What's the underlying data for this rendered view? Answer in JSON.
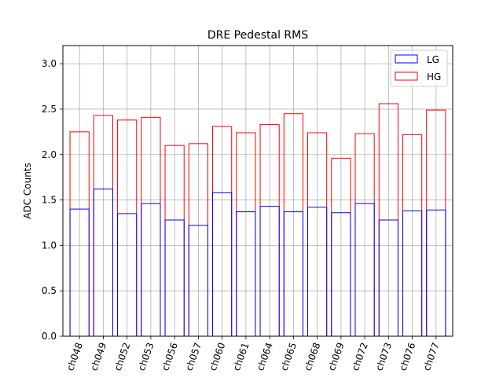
{
  "chart_data": {
    "type": "bar",
    "title": "DRE Pedestal RMS",
    "xlabel": "",
    "ylabel": "ADC Counts",
    "ylim": [
      0,
      3.2
    ],
    "yticks": [
      0.0,
      0.5,
      1.0,
      1.5,
      2.0,
      2.5,
      3.0
    ],
    "ytick_labels": [
      "0.0",
      "0.5",
      "1.0",
      "1.5",
      "2.0",
      "2.5",
      "3.0"
    ],
    "grid": true,
    "legend_position": "top-right",
    "categories": [
      "ch048",
      "ch049",
      "ch052",
      "ch053",
      "ch056",
      "ch057",
      "ch060",
      "ch061",
      "ch064",
      "ch065",
      "ch068",
      "ch069",
      "ch072",
      "ch073",
      "ch076",
      "ch077"
    ],
    "series": [
      {
        "name": "LG",
        "color": "#0000ff",
        "fill": "none",
        "values": [
          1.4,
          1.62,
          1.35,
          1.46,
          1.28,
          1.22,
          1.58,
          1.37,
          1.43,
          1.37,
          1.42,
          1.36,
          1.46,
          1.28,
          1.38,
          1.39
        ]
      },
      {
        "name": "HG",
        "color": "#ff0000",
        "fill": "none",
        "values": [
          2.25,
          2.43,
          2.38,
          2.41,
          2.1,
          2.12,
          2.31,
          2.24,
          2.33,
          2.45,
          2.24,
          1.96,
          2.23,
          2.56,
          2.22,
          2.49
        ]
      }
    ]
  }
}
